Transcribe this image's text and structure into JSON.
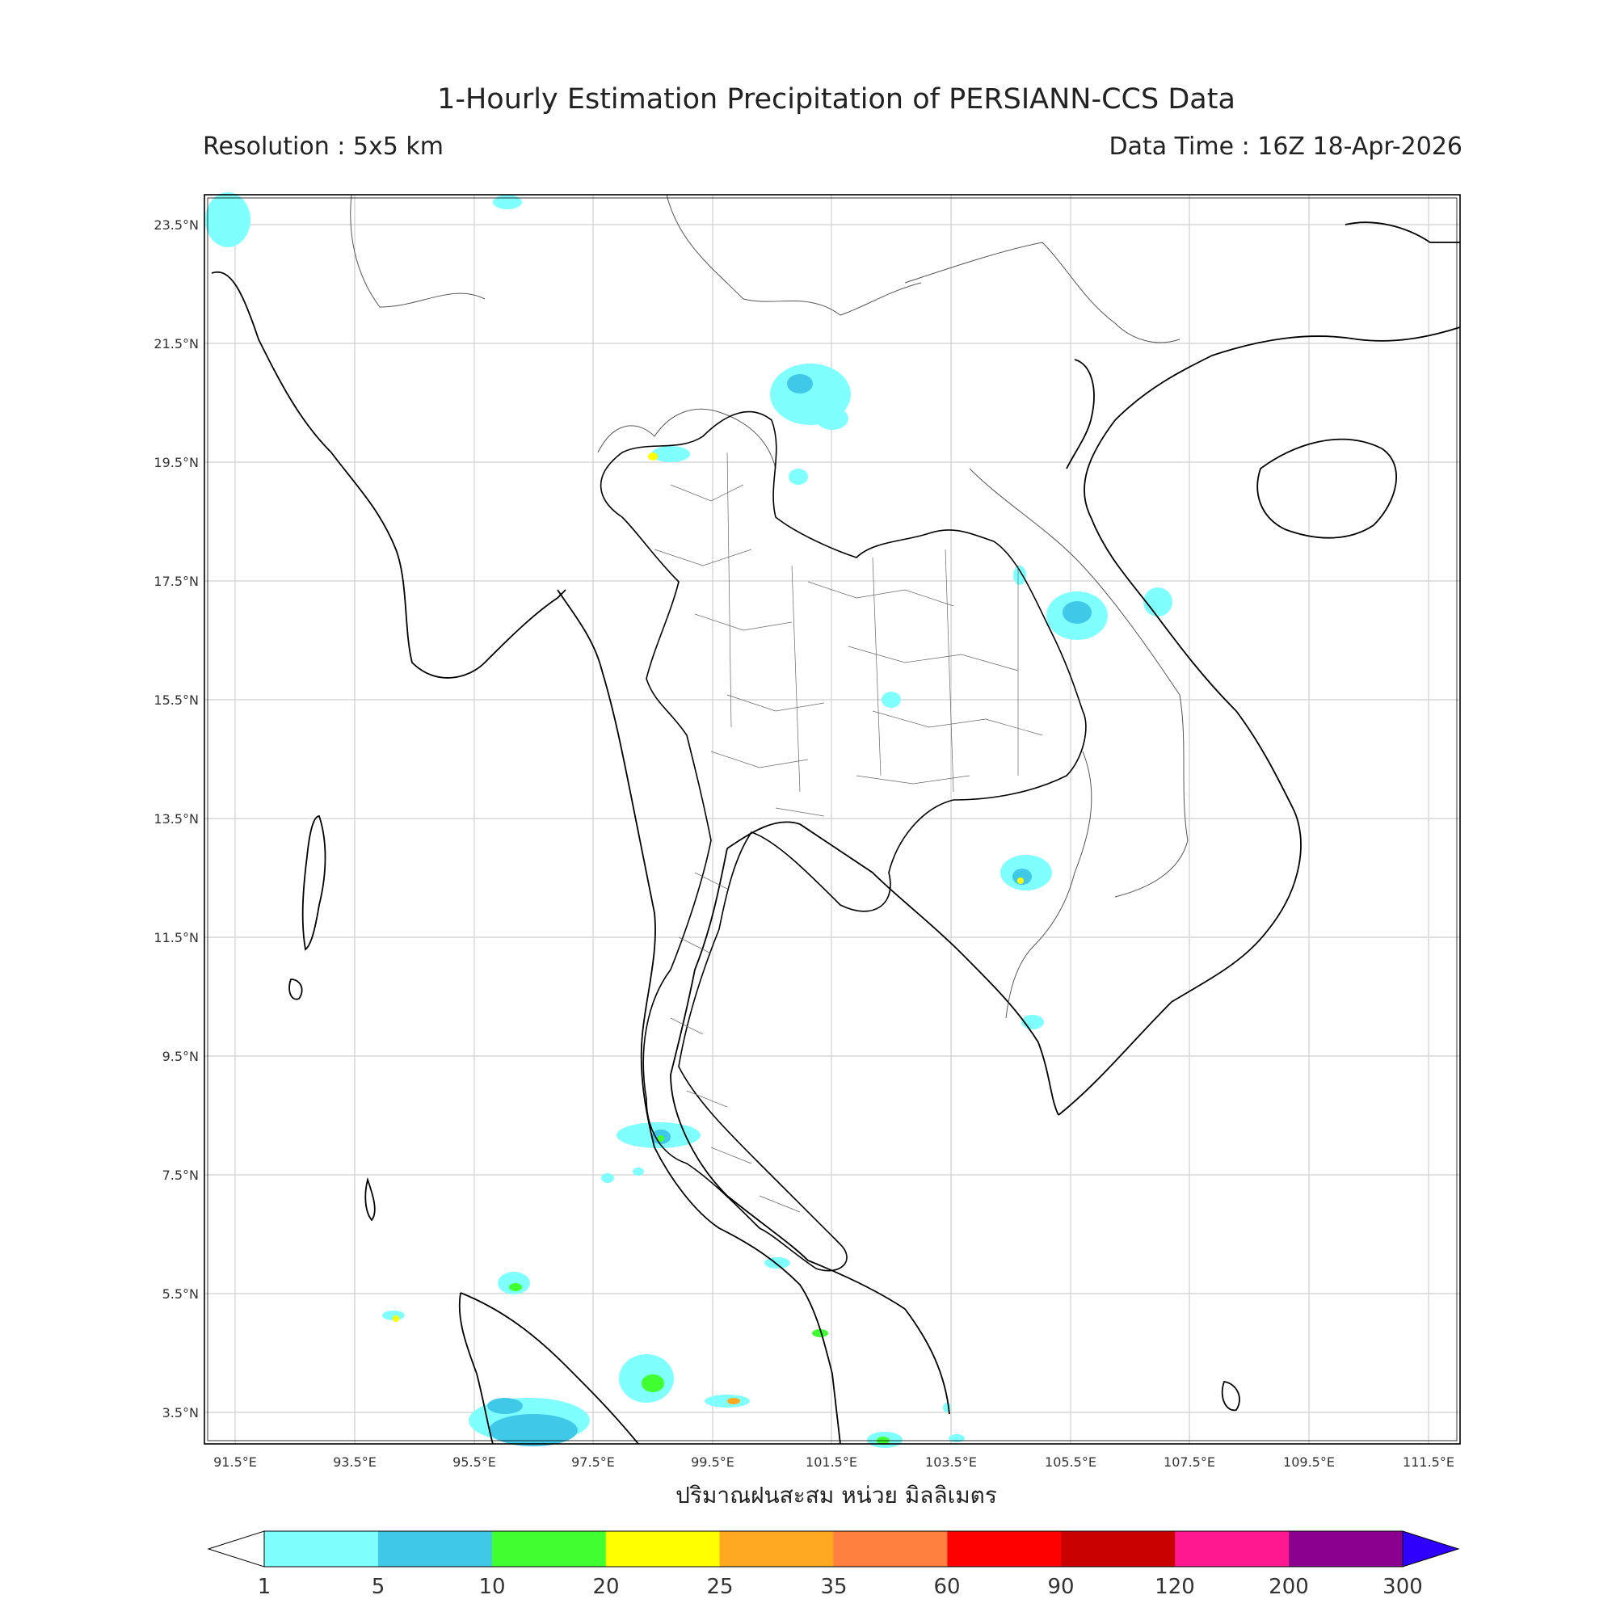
{
  "header": {
    "title": "1-Hourly Estimation Precipitation of PERSIANN-CCS Data",
    "resolution": "Resolution : 5x5 km",
    "data_time": "Data Time : 16Z 18-Apr-2026"
  },
  "map": {
    "lat_labels": [
      "23.5°N",
      "21.5°N",
      "19.5°N",
      "17.5°N",
      "15.5°N",
      "13.5°N",
      "11.5°N",
      "9.5°N",
      "7.5°N",
      "5.5°N",
      "3.5°N"
    ],
    "lon_labels": [
      "91.5°E",
      "93.5°E",
      "95.5°E",
      "97.5°E",
      "99.5°E",
      "101.5°E",
      "103.5°E",
      "105.5°E",
      "107.5°E",
      "109.5°E",
      "111.5°E"
    ],
    "x_unit_label": "ปริมาณฝนสะสม หน่วย มิลลิเมตร"
  },
  "colorbar": {
    "ticks": [
      "1",
      "5",
      "10",
      "20",
      "25",
      "35",
      "60",
      "90",
      "120",
      "200",
      "300"
    ],
    "colors": [
      "#80ffff",
      "#40c8e8",
      "#40ff30",
      "#ffff00",
      "#ffa820",
      "#ff8040",
      "#ff0000",
      "#c80000",
      "#ff1890",
      "#8c0090",
      "#3000ff"
    ]
  }
}
